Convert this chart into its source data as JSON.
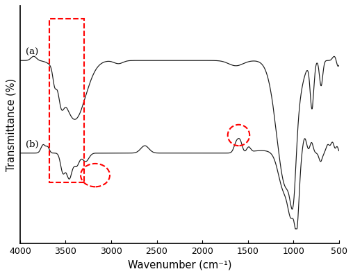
{
  "title": "",
  "xlabel": "Wavenumber (cm⁻¹)",
  "ylabel": "Transmittance (%)",
  "line_color": "#1a1a1a",
  "background_color": "#ffffff",
  "label_a": "(a)",
  "label_b": "(b)"
}
